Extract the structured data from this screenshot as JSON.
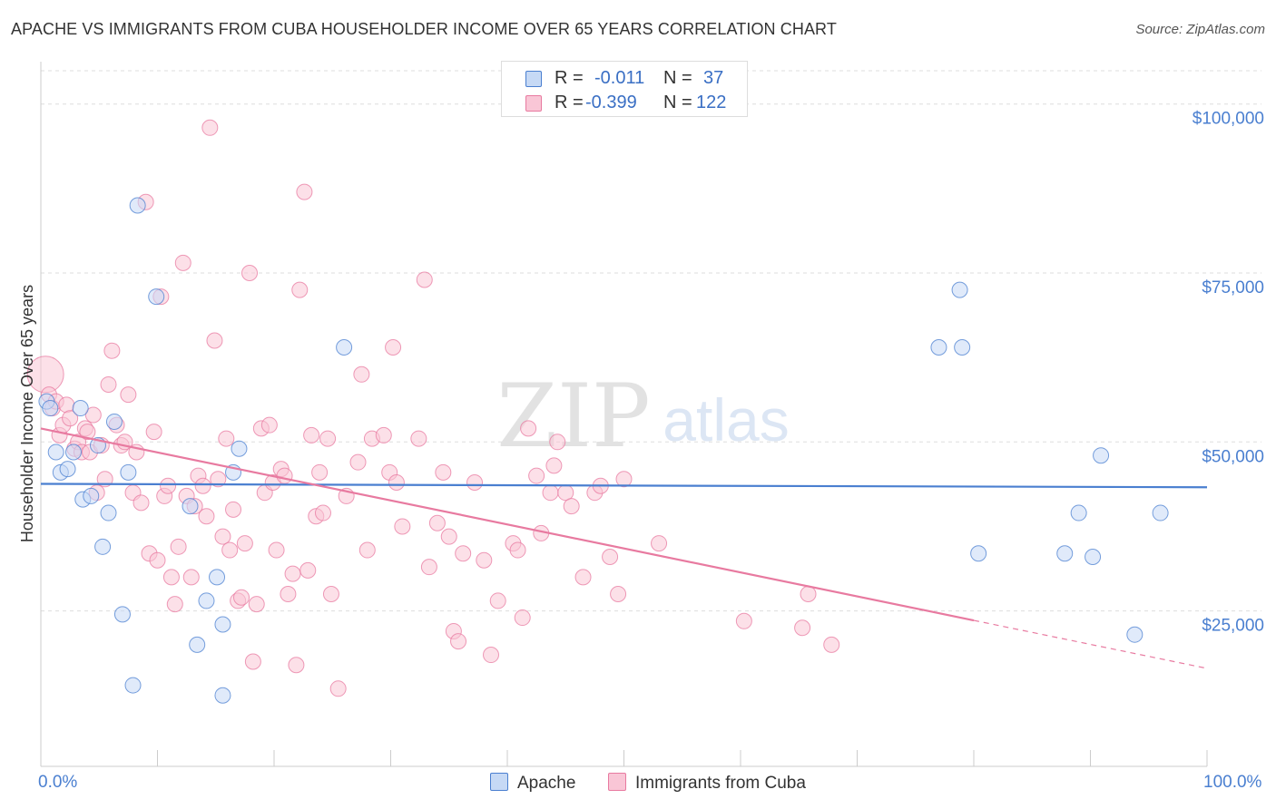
{
  "title": "APACHE VS IMMIGRANTS FROM CUBA HOUSEHOLDER INCOME OVER 65 YEARS CORRELATION CHART",
  "source": "Source: ZipAtlas.com",
  "watermark": {
    "zip": "ZIP",
    "atlas": "atlas"
  },
  "legend": {
    "apache": {
      "r_label": "R =",
      "r_value": "-0.011",
      "n_label": "N =",
      "n_value": "37"
    },
    "cuba": {
      "r_label": "R =",
      "r_value": "-0.399",
      "n_label": "N =",
      "n_value": "122"
    }
  },
  "chart_data": {
    "type": "scatter",
    "title": "APACHE VS IMMIGRANTS FROM CUBA HOUSEHOLDER INCOME OVER 65 YEARS CORRELATION CHART",
    "xlabel": "",
    "ylabel": "Householder Income Over 65 years",
    "xlim": [
      0,
      100
    ],
    "ylim": [
      2000,
      106000
    ],
    "x_tick_labels": [
      "0.0%",
      "100.0%"
    ],
    "y_ticks": [
      25000,
      50000,
      75000,
      100000
    ],
    "y_tick_labels": [
      "$25,000",
      "$50,000",
      "$75,000",
      "$100,000"
    ],
    "grid": true,
    "colors": {
      "apache": "#4a7fd0",
      "apache_fill": "#c6d9f5",
      "cuba": "#e87aa0",
      "cuba_fill": "#f9c6d6",
      "axis_text": "#4a7fd0"
    },
    "series": [
      {
        "name": "Apache",
        "trend": {
          "x": [
            0,
            100
          ],
          "y": [
            43800,
            43300
          ],
          "dashed_from": null
        },
        "points": [
          [
            0.5,
            56000
          ],
          [
            0.8,
            55000
          ],
          [
            1.3,
            48500
          ],
          [
            1.7,
            45500
          ],
          [
            2.3,
            46000
          ],
          [
            2.8,
            48500
          ],
          [
            3.4,
            55000
          ],
          [
            3.6,
            41500
          ],
          [
            4.3,
            42000
          ],
          [
            4.9,
            49500
          ],
          [
            5.3,
            34500
          ],
          [
            5.8,
            39500
          ],
          [
            6.3,
            53000
          ],
          [
            7.0,
            24500
          ],
          [
            7.5,
            45500
          ],
          [
            7.9,
            14000
          ],
          [
            8.3,
            85000
          ],
          [
            9.9,
            71500
          ],
          [
            12.8,
            40500
          ],
          [
            13.4,
            20000
          ],
          [
            14.2,
            26500
          ],
          [
            15.1,
            30000
          ],
          [
            15.6,
            23000
          ],
          [
            15.6,
            12500
          ],
          [
            16.5,
            45500
          ],
          [
            17.0,
            49000
          ],
          [
            26.0,
            64000
          ],
          [
            77.0,
            64000
          ],
          [
            78.8,
            72500
          ],
          [
            79.0,
            64000
          ],
          [
            80.4,
            33500
          ],
          [
            87.8,
            33500
          ],
          [
            89.0,
            39500
          ],
          [
            90.2,
            33000
          ],
          [
            90.9,
            48000
          ],
          [
            93.8,
            21500
          ],
          [
            96.0,
            39500
          ]
        ]
      },
      {
        "name": "Immigrants from Cuba",
        "trend": {
          "x": [
            0,
            100
          ],
          "y": [
            52000,
            16500
          ],
          "dashed_from": 80
        },
        "points": [
          [
            0.4,
            60000
          ],
          [
            0.7,
            57000
          ],
          [
            1.0,
            55000
          ],
          [
            1.3,
            56000
          ],
          [
            1.6,
            51000
          ],
          [
            1.9,
            52500
          ],
          [
            2.2,
            55500
          ],
          [
            2.5,
            53500
          ],
          [
            2.9,
            49000
          ],
          [
            3.2,
            50000
          ],
          [
            3.5,
            48500
          ],
          [
            3.8,
            52000
          ],
          [
            4.0,
            51500
          ],
          [
            4.2,
            48500
          ],
          [
            4.5,
            54000
          ],
          [
            4.8,
            42500
          ],
          [
            5.2,
            49500
          ],
          [
            5.5,
            44500
          ],
          [
            5.8,
            58500
          ],
          [
            6.1,
            63500
          ],
          [
            6.5,
            52500
          ],
          [
            6.9,
            49500
          ],
          [
            7.2,
            50000
          ],
          [
            7.5,
            57000
          ],
          [
            7.9,
            42500
          ],
          [
            8.2,
            48500
          ],
          [
            8.6,
            41000
          ],
          [
            9.0,
            85500
          ],
          [
            9.3,
            33500
          ],
          [
            9.7,
            51500
          ],
          [
            10.0,
            32500
          ],
          [
            10.3,
            71500
          ],
          [
            10.6,
            42000
          ],
          [
            10.9,
            43500
          ],
          [
            11.2,
            30000
          ],
          [
            11.5,
            26000
          ],
          [
            11.8,
            34500
          ],
          [
            12.2,
            76500
          ],
          [
            12.5,
            42000
          ],
          [
            12.9,
            30000
          ],
          [
            13.2,
            40500
          ],
          [
            13.5,
            45000
          ],
          [
            13.9,
            43500
          ],
          [
            14.2,
            39000
          ],
          [
            14.5,
            96500
          ],
          [
            14.9,
            65000
          ],
          [
            15.2,
            44500
          ],
          [
            15.6,
            36000
          ],
          [
            15.9,
            50500
          ],
          [
            16.2,
            34000
          ],
          [
            16.5,
            40000
          ],
          [
            16.9,
            26500
          ],
          [
            17.2,
            27000
          ],
          [
            17.5,
            35000
          ],
          [
            17.9,
            75000
          ],
          [
            18.2,
            17500
          ],
          [
            18.5,
            26000
          ],
          [
            18.9,
            52000
          ],
          [
            19.2,
            42500
          ],
          [
            19.6,
            52500
          ],
          [
            19.9,
            44000
          ],
          [
            20.2,
            34000
          ],
          [
            20.6,
            46000
          ],
          [
            20.9,
            45000
          ],
          [
            21.2,
            27500
          ],
          [
            21.6,
            30500
          ],
          [
            21.9,
            17000
          ],
          [
            22.2,
            72500
          ],
          [
            22.6,
            87000
          ],
          [
            22.9,
            31000
          ],
          [
            23.2,
            51000
          ],
          [
            23.6,
            39000
          ],
          [
            23.9,
            45500
          ],
          [
            24.2,
            39500
          ],
          [
            24.6,
            50500
          ],
          [
            24.9,
            27500
          ],
          [
            25.5,
            13500
          ],
          [
            26.2,
            42000
          ],
          [
            27.2,
            47000
          ],
          [
            27.5,
            60000
          ],
          [
            28.0,
            34000
          ],
          [
            28.4,
            50500
          ],
          [
            29.4,
            51000
          ],
          [
            29.9,
            45500
          ],
          [
            30.2,
            64000
          ],
          [
            30.5,
            44000
          ],
          [
            31.0,
            37500
          ],
          [
            32.4,
            50500
          ],
          [
            32.9,
            74000
          ],
          [
            33.3,
            31500
          ],
          [
            34.0,
            38000
          ],
          [
            34.5,
            45500
          ],
          [
            35.0,
            36000
          ],
          [
            35.4,
            22000
          ],
          [
            35.8,
            20500
          ],
          [
            36.2,
            33500
          ],
          [
            37.2,
            44000
          ],
          [
            38.0,
            32500
          ],
          [
            38.6,
            18500
          ],
          [
            39.2,
            26500
          ],
          [
            40.5,
            35000
          ],
          [
            40.9,
            34000
          ],
          [
            41.3,
            24000
          ],
          [
            41.8,
            52000
          ],
          [
            42.5,
            45000
          ],
          [
            42.9,
            36500
          ],
          [
            43.7,
            42500
          ],
          [
            44.0,
            46500
          ],
          [
            44.3,
            50000
          ],
          [
            45.0,
            42500
          ],
          [
            45.5,
            40500
          ],
          [
            46.5,
            30000
          ],
          [
            47.5,
            42500
          ],
          [
            48.0,
            43500
          ],
          [
            48.8,
            33000
          ],
          [
            49.5,
            27500
          ],
          [
            50.0,
            44500
          ],
          [
            53.0,
            35000
          ],
          [
            60.3,
            23500
          ],
          [
            65.3,
            22500
          ],
          [
            65.8,
            27500
          ],
          [
            67.8,
            20000
          ]
        ]
      }
    ]
  }
}
